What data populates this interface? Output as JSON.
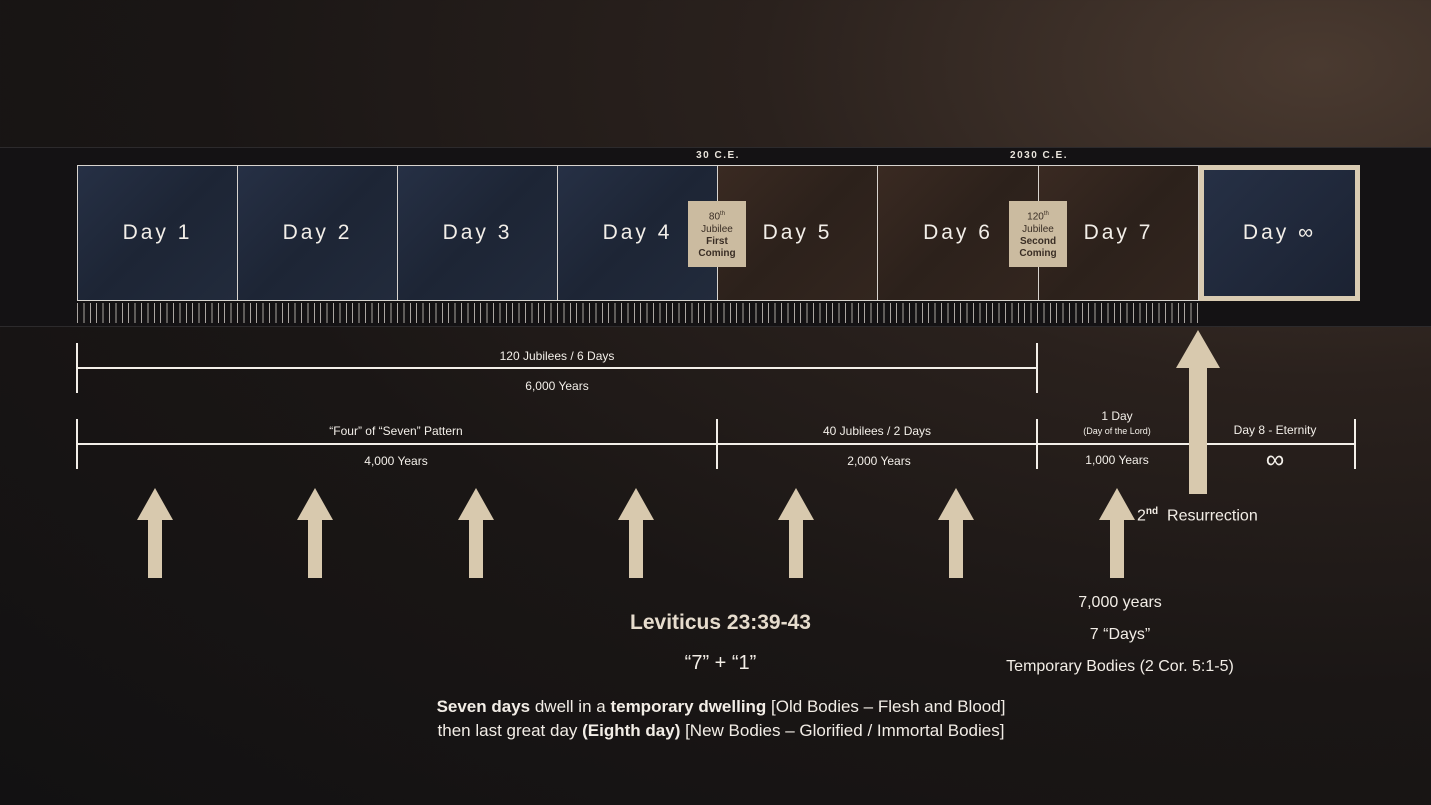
{
  "timeline": {
    "days": [
      "Day 1",
      "Day 2",
      "Day 3",
      "Day 4",
      "Day 5",
      "Day 6",
      "Day 7",
      "Day ∞"
    ],
    "year_markers": [
      "30 C.E.",
      "2030 C.E."
    ],
    "badges": [
      {
        "num": "80",
        "sup": "th",
        "line2": "Jubilee",
        "line3": "First",
        "line4": "Coming"
      },
      {
        "num": "120",
        "sup": "th",
        "line2": "Jubilee",
        "line3": "Second",
        "line4": "Coming"
      }
    ]
  },
  "spans": {
    "six_days_top": "120 Jubilees / 6 Days",
    "six_days_bottom": "6,000 Years",
    "four_top": "“Four” of “Seven” Pattern",
    "four_bottom": "4,000 Years",
    "two_top": "40 Jubilees / 2 Days",
    "two_bottom": "2,000 Years",
    "one_top": "1 Day",
    "one_sub": "(Day of the Lord)",
    "one_bottom": "1,000 Years",
    "eternity_top": "Day 8 - Eternity",
    "eternity_symbol": "∞"
  },
  "resurrection": {
    "ord": "2",
    "sup": "nd",
    "label": "Resurrection"
  },
  "right_notes": [
    "7,000 years",
    "7 “Days”",
    "Temporary Bodies (2 Cor. 5:1-5)"
  ],
  "center": {
    "title": "Leviticus 23:39-43",
    "formula": "“7” + “1”",
    "l1_b1": "Seven days",
    "l1_t1": " dwell in a ",
    "l1_b2": "temporary dwelling",
    "l1_t2": " [Old Bodies – Flesh and Blood]",
    "l2_t1": "then last great day ",
    "l2_b1": "(Eighth day)",
    "l2_t2": " [New Bodies – Glorified / Immortal Bodies]"
  },
  "colors": {
    "accent": "#cbbba0",
    "day_blue": "#232c3e",
    "day_brown": "#2f231d"
  }
}
